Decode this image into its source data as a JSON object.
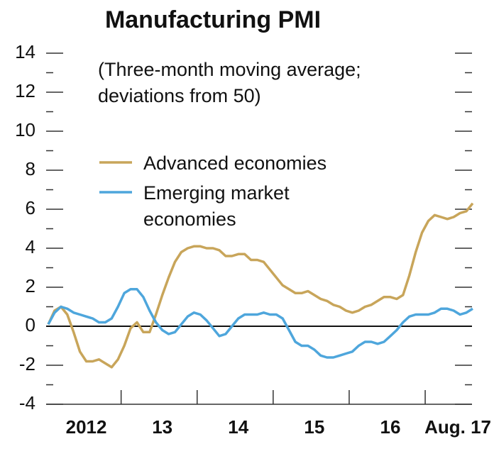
{
  "chart_data": {
    "type": "line",
    "title": "Manufacturing PMI",
    "annotation": "(Three-month moving average; deviations from 50)",
    "categories": [
      null,
      null,
      null,
      null,
      null,
      null,
      "2012",
      null,
      null,
      null,
      null,
      null,
      null,
      null,
      null,
      null,
      null,
      null,
      "13",
      null,
      null,
      null,
      null,
      null,
      null,
      null,
      null,
      null,
      null,
      null,
      "14",
      null,
      null,
      null,
      null,
      null,
      null,
      null,
      null,
      null,
      null,
      null,
      "15",
      null,
      null,
      null,
      null,
      null,
      null,
      null,
      null,
      null,
      null,
      null,
      "16",
      null,
      null,
      null,
      null,
      null,
      null,
      null,
      null,
      null,
      null,
      null,
      null,
      "Aug. 17"
    ],
    "series": [
      {
        "name": "Advanced economies",
        "color": "#c8a55a",
        "values": [
          0.1,
          0.8,
          1.0,
          0.6,
          -0.3,
          -1.3,
          -1.8,
          -1.8,
          -1.7,
          -1.9,
          -2.1,
          -1.7,
          -1.0,
          -0.1,
          0.2,
          -0.3,
          -0.3,
          0.6,
          1.6,
          2.5,
          3.3,
          3.8,
          4.0,
          4.1,
          4.1,
          4.0,
          4.0,
          3.9,
          3.6,
          3.6,
          3.7,
          3.7,
          3.4,
          3.4,
          3.3,
          2.9,
          2.5,
          2.1,
          1.9,
          1.7,
          1.7,
          1.8,
          1.6,
          1.4,
          1.3,
          1.1,
          1.0,
          0.8,
          0.7,
          0.8,
          1.0,
          1.1,
          1.3,
          1.5,
          1.5,
          1.4,
          1.6,
          2.6,
          3.8,
          4.8,
          5.4,
          5.7,
          5.6,
          5.5,
          5.6,
          5.8,
          5.9,
          6.3
        ]
      },
      {
        "name": "Emerging market economies",
        "color": "#4ea6dc",
        "values": [
          0.1,
          0.7,
          1.0,
          0.9,
          0.7,
          0.6,
          0.5,
          0.4,
          0.2,
          0.2,
          0.4,
          1.0,
          1.7,
          1.9,
          1.9,
          1.5,
          0.8,
          0.2,
          -0.2,
          -0.4,
          -0.3,
          0.1,
          0.5,
          0.7,
          0.6,
          0.3,
          -0.1,
          -0.5,
          -0.4,
          0,
          0.4,
          0.6,
          0.6,
          0.6,
          0.7,
          0.6,
          0.6,
          0.4,
          -0.2,
          -0.8,
          -1.0,
          -1.0,
          -1.2,
          -1.5,
          -1.6,
          -1.6,
          -1.5,
          -1.4,
          -1.3,
          -1.0,
          -0.8,
          -0.8,
          -0.9,
          -0.8,
          -0.5,
          -0.2,
          0.2,
          0.5,
          0.6,
          0.6,
          0.6,
          0.7,
          0.9,
          0.9,
          0.8,
          0.6,
          0.7,
          0.9
        ]
      }
    ],
    "ylim": [
      -4,
      14
    ],
    "yticks": [
      -4,
      -2,
      0,
      2,
      4,
      6,
      8,
      10,
      12,
      14
    ],
    "legend": "upper left"
  }
}
